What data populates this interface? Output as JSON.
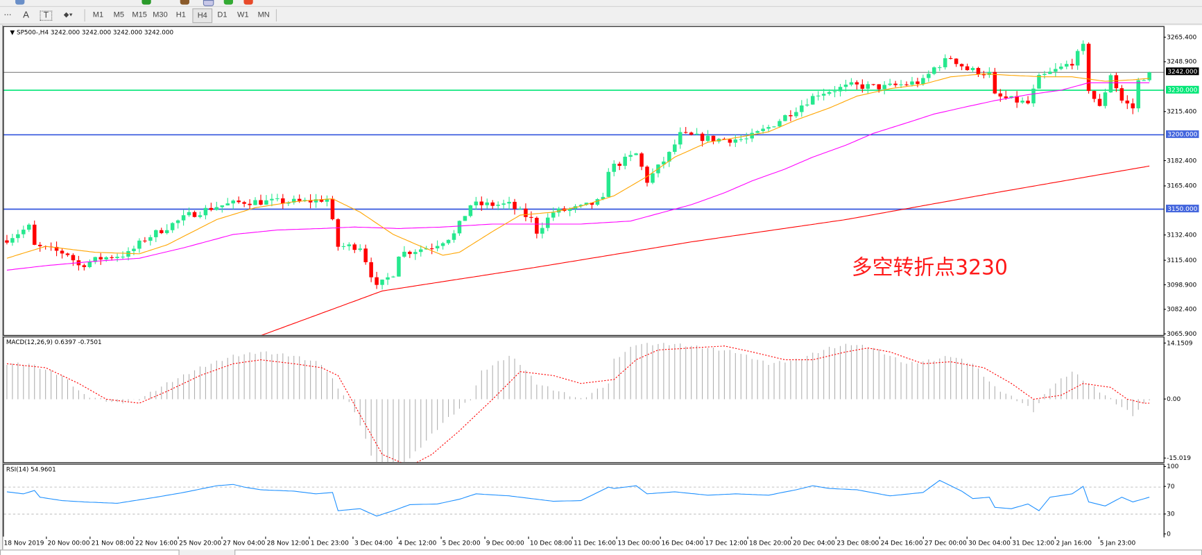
{
  "toolbar": {
    "tools": [
      "grid-icon",
      "text-icon",
      "text-label-icon",
      "arrows-icon"
    ],
    "timeframes": [
      "M1",
      "M5",
      "M15",
      "M30",
      "H1",
      "H4",
      "D1",
      "W1",
      "MN"
    ],
    "active_timeframe": "H4"
  },
  "chart": {
    "header": "SP500-,H4  3242.000 3242.000 3242.000 3242.000",
    "annotation": "多空转折点3230",
    "colors": {
      "bull": "#26e88e",
      "bear": "#ff0000",
      "ma_fast": "#ffa500",
      "ma_mid": "#ff00ff",
      "ma_slow": "#ff0000",
      "level_green": "#00e676",
      "level_blue": "#3355dd",
      "current": "#808080"
    },
    "price_axis": [
      "3265.400",
      "3248.900",
      "3215.400",
      "3182.400",
      "3165.400",
      "3132.400",
      "3115.400",
      "3098.900",
      "3082.400",
      "3065.900"
    ],
    "levels": [
      {
        "label": "3242.000",
        "value": 3242,
        "kind": "current"
      },
      {
        "label": "3230.000",
        "value": 3230,
        "kind": "green"
      },
      {
        "label": "3200.000",
        "value": 3200,
        "kind": "blue"
      },
      {
        "label": "3150.000",
        "value": 3150,
        "kind": "blue"
      }
    ]
  },
  "macd": {
    "label": "MACD(12,26,9) 0.6397 -0.7501",
    "axis": [
      "14.1509",
      "0.00",
      "-15.019"
    ]
  },
  "rsi": {
    "label": "RSI(14) 54.9601",
    "axis": [
      "100",
      "70",
      "30",
      "0"
    ]
  },
  "time_axis": [
    "18 Nov 2019",
    "20 Nov 00:00",
    "21 Nov 08:00",
    "22 Nov 16:00",
    "25 Nov 20:00",
    "27 Nov 04:00",
    "28 Nov 12:00",
    "1 Dec 23:00",
    "3 Dec 04:00",
    "4 Dec 12:00",
    "5 Dec 20:00",
    "9 Dec 00:00",
    "10 Dec 08:00",
    "11 Dec 16:00",
    "13 Dec 00:00",
    "16 Dec 04:00",
    "17 Dec 12:00",
    "18 Dec 20:00",
    "20 Dec 04:00",
    "23 Dec 08:00",
    "24 Dec 16:00",
    "27 Dec 00:00",
    "30 Dec 04:00",
    "31 Dec 12:00",
    "2 Jan 16:00",
    "5 Jan 23:00"
  ],
  "chart_data": [
    {
      "type": "candlestick",
      "symbol": "SP500-",
      "timeframe": "H4",
      "ylim": [
        3065.9,
        3265.4
      ],
      "bars": 208,
      "close_path": [
        [
          0,
          3130
        ],
        [
          4,
          3138
        ],
        [
          5,
          3125
        ],
        [
          11,
          3120
        ],
        [
          13,
          3112
        ],
        [
          17,
          3117
        ],
        [
          22,
          3120
        ],
        [
          25,
          3130
        ],
        [
          29,
          3138
        ],
        [
          33,
          3146
        ],
        [
          38,
          3152
        ],
        [
          43,
          3155
        ],
        [
          49,
          3155
        ],
        [
          54,
          3155
        ],
        [
          58,
          3157
        ],
        [
          60,
          3125
        ],
        [
          64,
          3125
        ],
        [
          67,
          3097
        ],
        [
          70,
          3107
        ],
        [
          71,
          3120
        ],
        [
          77,
          3125
        ],
        [
          81,
          3133
        ],
        [
          84,
          3153
        ],
        [
          91,
          3153
        ],
        [
          95,
          3143
        ],
        [
          96,
          3135
        ],
        [
          99,
          3148
        ],
        [
          104,
          3151
        ],
        [
          108,
          3156
        ],
        [
          109,
          3177
        ],
        [
          114,
          3187
        ],
        [
          116,
          3169
        ],
        [
          120,
          3187
        ],
        [
          122,
          3200
        ],
        [
          128,
          3197
        ],
        [
          134,
          3197
        ],
        [
          138,
          3205
        ],
        [
          142,
          3215
        ],
        [
          147,
          3228
        ],
        [
          153,
          3233
        ],
        [
          159,
          3232
        ],
        [
          166,
          3236
        ],
        [
          168,
          3245
        ],
        [
          171,
          3252
        ],
        [
          174,
          3244
        ],
        [
          178,
          3241
        ],
        [
          179,
          3226
        ],
        [
          185,
          3221
        ],
        [
          187,
          3238
        ],
        [
          191,
          3245
        ],
        [
          193,
          3249
        ],
        [
          195,
          3259
        ],
        [
          196,
          3231
        ],
        [
          198,
          3218
        ],
        [
          200,
          3241
        ],
        [
          202,
          3223
        ],
        [
          204,
          3218
        ],
        [
          205,
          3236
        ],
        [
          207,
          3242
        ]
      ],
      "ma_fast": [
        [
          0,
          3117
        ],
        [
          7,
          3125
        ],
        [
          16,
          3121
        ],
        [
          24,
          3120
        ],
        [
          29,
          3126
        ],
        [
          38,
          3143
        ],
        [
          45,
          3151
        ],
        [
          52,
          3155
        ],
        [
          59,
          3157
        ],
        [
          64,
          3148
        ],
        [
          70,
          3133
        ],
        [
          75,
          3125
        ],
        [
          79,
          3119
        ],
        [
          82,
          3121
        ],
        [
          88,
          3135
        ],
        [
          93,
          3146
        ],
        [
          99,
          3148
        ],
        [
          104,
          3152
        ],
        [
          110,
          3159
        ],
        [
          116,
          3172
        ],
        [
          121,
          3185
        ],
        [
          127,
          3195
        ],
        [
          132,
          3198
        ],
        [
          138,
          3202
        ],
        [
          143,
          3210
        ],
        [
          149,
          3218
        ],
        [
          154,
          3226
        ],
        [
          160,
          3231
        ],
        [
          166,
          3234
        ],
        [
          171,
          3239
        ],
        [
          177,
          3241
        ],
        [
          182,
          3240
        ],
        [
          188,
          3239
        ],
        [
          193,
          3239
        ],
        [
          199,
          3236
        ],
        [
          204,
          3237
        ],
        [
          207,
          3238
        ]
      ],
      "ma_mid": [
        [
          0,
          3109
        ],
        [
          7,
          3112
        ],
        [
          16,
          3115
        ],
        [
          24,
          3117
        ],
        [
          32,
          3124
        ],
        [
          41,
          3133
        ],
        [
          49,
          3136
        ],
        [
          57,
          3137
        ],
        [
          63,
          3138
        ],
        [
          71,
          3137
        ],
        [
          79,
          3138
        ],
        [
          88,
          3140
        ],
        [
          96,
          3140
        ],
        [
          104,
          3140
        ],
        [
          113,
          3142
        ],
        [
          118,
          3147
        ],
        [
          124,
          3153
        ],
        [
          130,
          3161
        ],
        [
          135,
          3169
        ],
        [
          141,
          3177
        ],
        [
          146,
          3185
        ],
        [
          152,
          3193
        ],
        [
          157,
          3201
        ],
        [
          163,
          3208
        ],
        [
          168,
          3214
        ],
        [
          174,
          3219
        ],
        [
          179,
          3223
        ],
        [
          185,
          3227
        ],
        [
          191,
          3230
        ],
        [
          196,
          3235
        ],
        [
          202,
          3235
        ],
        [
          207,
          3235
        ]
      ],
      "ma_slow": [
        [
          46,
          3065
        ],
        [
          68,
          3095
        ],
        [
          96,
          3111
        ],
        [
          124,
          3128
        ],
        [
          152,
          3143
        ],
        [
          179,
          3161
        ],
        [
          207,
          3179
        ]
      ],
      "horizontal_levels": [
        3242,
        3230,
        3200,
        3150
      ]
    },
    {
      "type": "bar+line",
      "name": "MACD(12,26,9)",
      "ylim": [
        -15.019,
        14.1509
      ],
      "histogram": [
        [
          0,
          9
        ],
        [
          4,
          9
        ],
        [
          10,
          6
        ],
        [
          14,
          1
        ],
        [
          20,
          -1
        ],
        [
          24,
          0
        ],
        [
          29,
          4
        ],
        [
          35,
          8
        ],
        [
          41,
          11
        ],
        [
          46,
          12
        ],
        [
          52,
          11
        ],
        [
          57,
          9
        ],
        [
          60,
          3
        ],
        [
          63,
          -3
        ],
        [
          66,
          -14
        ],
        [
          68,
          -21
        ],
        [
          71,
          -18
        ],
        [
          75,
          -12
        ],
        [
          79,
          -6
        ],
        [
          84,
          0
        ],
        [
          86,
          7
        ],
        [
          91,
          11
        ],
        [
          93,
          9
        ],
        [
          96,
          4
        ],
        [
          100,
          2
        ],
        [
          104,
          0
        ],
        [
          109,
          4
        ],
        [
          110,
          10
        ],
        [
          114,
          14
        ],
        [
          118,
          14
        ],
        [
          121,
          14
        ],
        [
          127,
          13
        ],
        [
          132,
          12
        ],
        [
          138,
          9
        ],
        [
          143,
          10
        ],
        [
          149,
          13
        ],
        [
          153,
          14
        ],
        [
          157,
          13
        ],
        [
          163,
          9
        ],
        [
          168,
          10
        ],
        [
          171,
          11
        ],
        [
          175,
          9
        ],
        [
          179,
          3
        ],
        [
          184,
          -1
        ],
        [
          186,
          -3
        ],
        [
          189,
          3
        ],
        [
          193,
          7
        ],
        [
          196,
          4
        ],
        [
          199,
          1
        ],
        [
          202,
          -2
        ],
        [
          204,
          -4
        ],
        [
          207,
          0
        ]
      ],
      "signal": [
        [
          0,
          9
        ],
        [
          7,
          8
        ],
        [
          13,
          4
        ],
        [
          18,
          0
        ],
        [
          24,
          -1
        ],
        [
          29,
          2
        ],
        [
          35,
          6
        ],
        [
          41,
          9
        ],
        [
          46,
          10
        ],
        [
          52,
          9
        ],
        [
          57,
          8
        ],
        [
          60,
          6
        ],
        [
          64,
          -4
        ],
        [
          68,
          -14
        ],
        [
          73,
          -17
        ],
        [
          77,
          -14
        ],
        [
          82,
          -8
        ],
        [
          88,
          0
        ],
        [
          93,
          7
        ],
        [
          99,
          6
        ],
        [
          104,
          4
        ],
        [
          110,
          5
        ],
        [
          114,
          10
        ],
        [
          118,
          12.5
        ],
        [
          124,
          13
        ],
        [
          130,
          13.5
        ],
        [
          135,
          12
        ],
        [
          141,
          10
        ],
        [
          146,
          10
        ],
        [
          152,
          12
        ],
        [
          156,
          13
        ],
        [
          160,
          12
        ],
        [
          166,
          9
        ],
        [
          171,
          9.5
        ],
        [
          177,
          8
        ],
        [
          182,
          4
        ],
        [
          186,
          0
        ],
        [
          191,
          1
        ],
        [
          195,
          4
        ],
        [
          200,
          3
        ],
        [
          203,
          0
        ],
        [
          206,
          -1
        ],
        [
          207,
          -1
        ]
      ],
      "current": [
        0.6397,
        -0.7501
      ]
    },
    {
      "type": "line",
      "name": "RSI(14)",
      "ylim": [
        0,
        100
      ],
      "levels": [
        70,
        30
      ],
      "values": [
        [
          0,
          63
        ],
        [
          3,
          60
        ],
        [
          5,
          65
        ],
        [
          6,
          55
        ],
        [
          10,
          50
        ],
        [
          14,
          48
        ],
        [
          20,
          46
        ],
        [
          27,
          55
        ],
        [
          32,
          62
        ],
        [
          38,
          72
        ],
        [
          41,
          74
        ],
        [
          43,
          70
        ],
        [
          46,
          66
        ],
        [
          52,
          64
        ],
        [
          56,
          60
        ],
        [
          59,
          62
        ],
        [
          60,
          35
        ],
        [
          64,
          38
        ],
        [
          67,
          27
        ],
        [
          70,
          35
        ],
        [
          73,
          44
        ],
        [
          78,
          45
        ],
        [
          82,
          52
        ],
        [
          85,
          60
        ],
        [
          91,
          57
        ],
        [
          95,
          53
        ],
        [
          99,
          49
        ],
        [
          104,
          50
        ],
        [
          109,
          70
        ],
        [
          110,
          68
        ],
        [
          114,
          72
        ],
        [
          116,
          60
        ],
        [
          121,
          63
        ],
        [
          127,
          58
        ],
        [
          132,
          60
        ],
        [
          138,
          58
        ],
        [
          143,
          66
        ],
        [
          146,
          72
        ],
        [
          149,
          68
        ],
        [
          154,
          66
        ],
        [
          160,
          57
        ],
        [
          166,
          62
        ],
        [
          169,
          80
        ],
        [
          171,
          72
        ],
        [
          173,
          64
        ],
        [
          175,
          53
        ],
        [
          178,
          55
        ],
        [
          179,
          40
        ],
        [
          182,
          38
        ],
        [
          185,
          45
        ],
        [
          187,
          35
        ],
        [
          189,
          55
        ],
        [
          193,
          60
        ],
        [
          195,
          71
        ],
        [
          196,
          48
        ],
        [
          199,
          42
        ],
        [
          202,
          55
        ],
        [
          204,
          48
        ],
        [
          207,
          55
        ]
      ],
      "current": 54.9601
    }
  ]
}
